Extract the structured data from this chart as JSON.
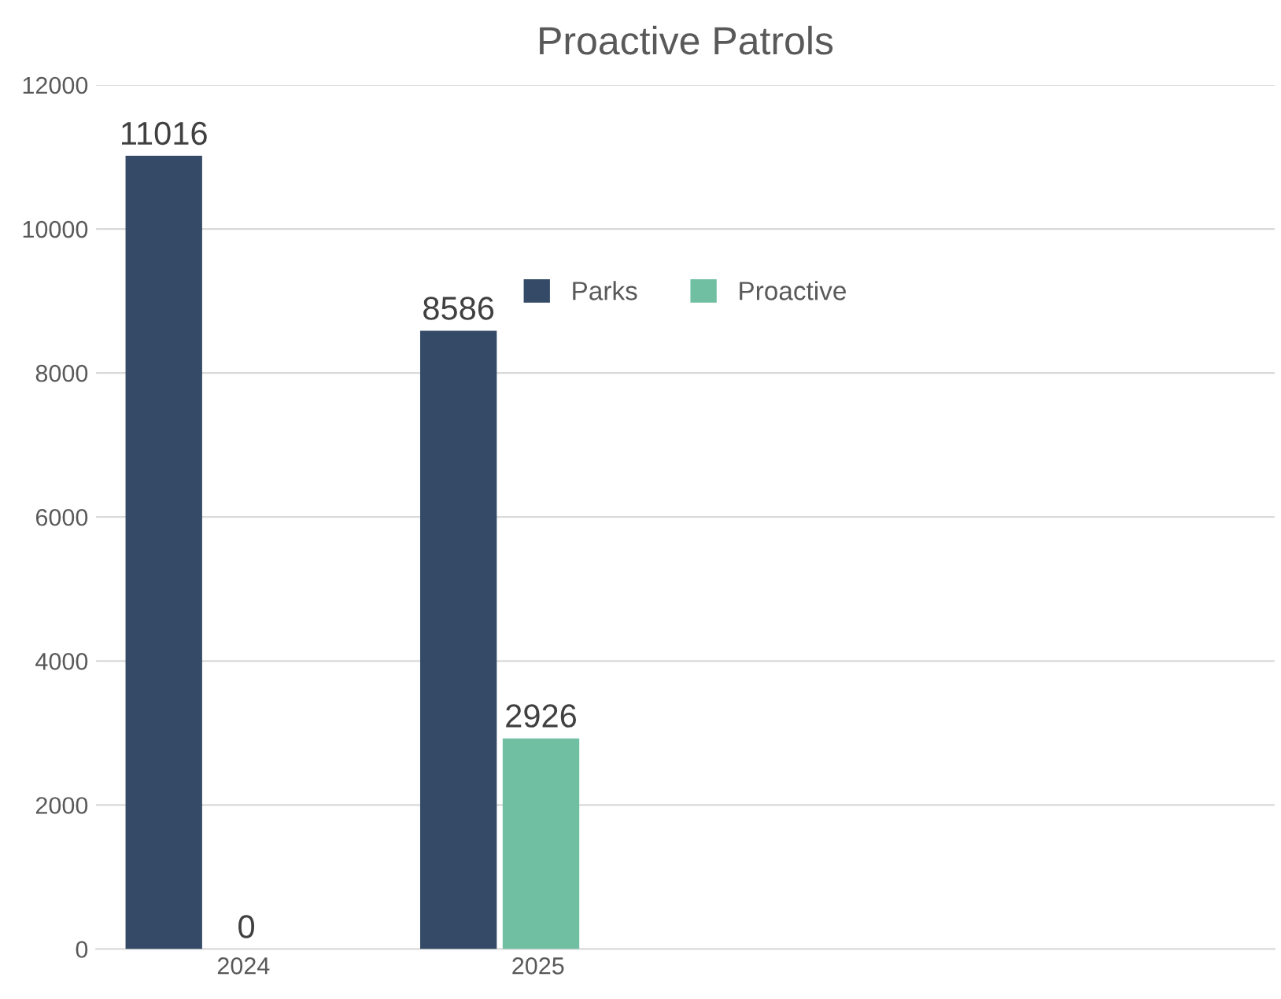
{
  "chart_data": {
    "type": "bar",
    "title": "Proactive Patrols",
    "categories": [
      "2024",
      "2025",
      null,
      null
    ],
    "series": [
      {
        "name": "Parks",
        "color": "#344a66",
        "values": [
          11016,
          8586,
          null,
          null
        ]
      },
      {
        "name": "Proactive",
        "color": "#70bfa3",
        "values": [
          0,
          2926,
          null,
          null
        ]
      }
    ],
    "ylim": [
      0,
      12000
    ],
    "yticks": [
      0,
      2000,
      4000,
      6000,
      8000,
      10000,
      12000
    ],
    "grid": "y",
    "legend": "top",
    "data_labels": true
  }
}
